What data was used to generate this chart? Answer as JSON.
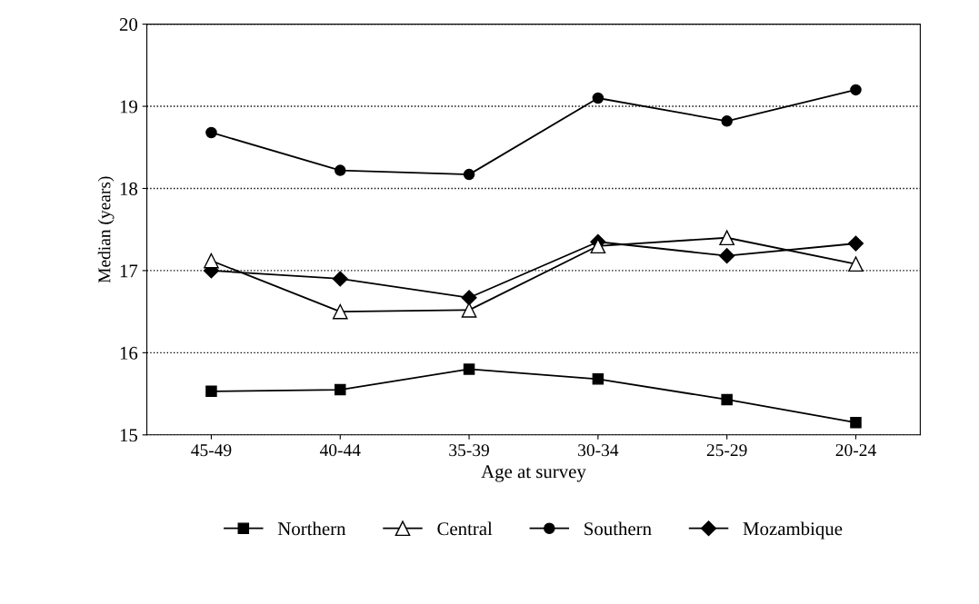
{
  "chart_data": {
    "type": "line",
    "xlabel": "Age at survey",
    "ylabel": "Median (years)",
    "categories": [
      "45-49",
      "40-44",
      "35-39",
      "30-34",
      "25-29",
      "20-24"
    ],
    "series": [
      {
        "name": "Northern",
        "color": "#000000",
        "marker": "square",
        "values": [
          15.53,
          15.55,
          15.8,
          15.68,
          15.43,
          15.15
        ]
      },
      {
        "name": "Central",
        "color": "#000000",
        "marker": "triangle",
        "values": [
          17.12,
          16.5,
          16.52,
          17.3,
          17.4,
          17.08
        ]
      },
      {
        "name": "Southern",
        "color": "#000000",
        "marker": "circle",
        "values": [
          18.68,
          18.22,
          18.17,
          19.1,
          18.82,
          19.2
        ]
      },
      {
        "name": "Mozambique",
        "color": "#000000",
        "marker": "diamond",
        "values": [
          17.0,
          16.9,
          16.67,
          17.35,
          17.18,
          17.33
        ]
      }
    ],
    "ylim": [
      15,
      20
    ],
    "yticks": [
      15,
      16,
      17,
      18,
      19,
      20
    ],
    "grid": "y",
    "legend": "bottom",
    "line_style": "solid"
  }
}
